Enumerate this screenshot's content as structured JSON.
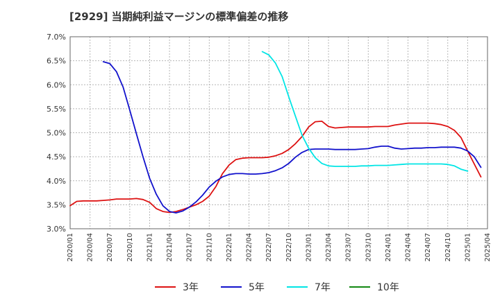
{
  "chart_data": {
    "type": "line",
    "title": "[2929]  当期純利益マージンの標準偏差の推移",
    "xlabel": "",
    "ylabel": "",
    "ylim": [
      3.0,
      7.0
    ],
    "y_ticks": [
      3.0,
      3.5,
      4.0,
      4.5,
      5.0,
      5.5,
      6.0,
      6.5,
      7.0
    ],
    "y_tick_labels": [
      "3.0%",
      "3.5%",
      "4.0%",
      "4.5%",
      "5.0%",
      "5.5%",
      "6.0%",
      "6.5%",
      "7.0%"
    ],
    "x_range": [
      "2020/01",
      "2025/04"
    ],
    "x_tick_labels": [
      "2020/01",
      "2020/04",
      "2020/07",
      "2020/10",
      "2021/01",
      "2021/04",
      "2021/07",
      "2021/10",
      "2022/01",
      "2022/04",
      "2022/07",
      "2022/10",
      "2023/01",
      "2023/04",
      "2023/07",
      "2023/10",
      "2024/01",
      "2024/04",
      "2024/07",
      "2024/10",
      "2025/01",
      "2025/04"
    ],
    "grid": true,
    "legend_position": "bottom",
    "series": [
      {
        "name": "3年",
        "color": "#dd1111",
        "start": "2020/01",
        "values": [
          3.48,
          3.57,
          3.58,
          3.58,
          3.58,
          3.59,
          3.6,
          3.62,
          3.62,
          3.62,
          3.63,
          3.61,
          3.55,
          3.42,
          3.36,
          3.34,
          3.36,
          3.4,
          3.45,
          3.5,
          3.57,
          3.68,
          3.88,
          4.15,
          4.33,
          4.44,
          4.47,
          4.48,
          4.48,
          4.48,
          4.49,
          4.52,
          4.57,
          4.65,
          4.77,
          4.92,
          5.12,
          5.23,
          5.24,
          5.13,
          5.1,
          5.11,
          5.12,
          5.12,
          5.12,
          5.12,
          5.13,
          5.13,
          5.13,
          5.16,
          5.18,
          5.2,
          5.2,
          5.2,
          5.2,
          5.19,
          5.17,
          5.13,
          5.05,
          4.9,
          4.62,
          4.35,
          4.08
        ]
      },
      {
        "name": "5年",
        "color": "#1111cc",
        "start": "2020/06",
        "values": [
          6.48,
          6.44,
          6.27,
          5.95,
          5.47,
          4.98,
          4.5,
          4.05,
          3.72,
          3.48,
          3.36,
          3.33,
          3.37,
          3.45,
          3.56,
          3.7,
          3.87,
          3.99,
          4.08,
          4.13,
          4.15,
          4.15,
          4.14,
          4.14,
          4.15,
          4.17,
          4.21,
          4.27,
          4.36,
          4.49,
          4.59,
          4.65,
          4.66,
          4.66,
          4.66,
          4.65,
          4.65,
          4.65,
          4.65,
          4.66,
          4.67,
          4.7,
          4.72,
          4.72,
          4.68,
          4.66,
          4.67,
          4.68,
          4.68,
          4.69,
          4.69,
          4.7,
          4.7,
          4.7,
          4.68,
          4.62,
          4.5,
          4.28
        ]
      },
      {
        "name": "7年",
        "color": "#00e5e5",
        "start": "2022/06",
        "values": [
          6.69,
          6.62,
          6.45,
          6.17,
          5.75,
          5.35,
          4.95,
          4.68,
          4.48,
          4.36,
          4.31,
          4.3,
          4.3,
          4.3,
          4.3,
          4.31,
          4.31,
          4.32,
          4.32,
          4.32,
          4.33,
          4.34,
          4.35,
          4.35,
          4.35,
          4.35,
          4.35,
          4.35,
          4.34,
          4.31,
          4.24,
          4.2
        ]
      },
      {
        "name": "10年",
        "color": "#118811",
        "start": "2020/01",
        "values": []
      }
    ]
  }
}
